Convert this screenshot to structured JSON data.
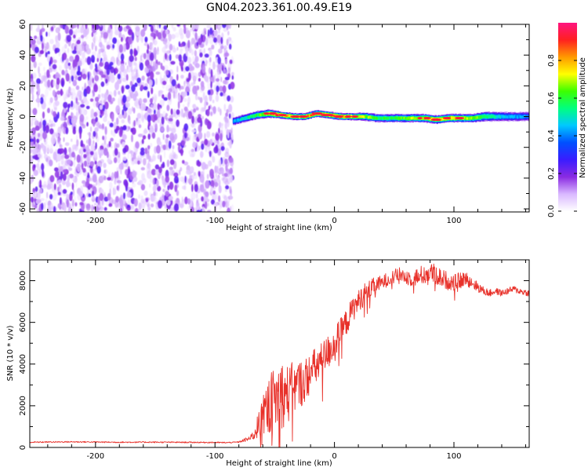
{
  "figure_title": "GN04.2023.361.00.49.E19",
  "chart_data": [
    {
      "type": "heatmap",
      "title": "",
      "xlabel": "Height of straight line (km)",
      "ylabel": "Frequency (Hz)",
      "xlim": [
        -255,
        163
      ],
      "ylim": [
        -62,
        60
      ],
      "xticks": [
        -200,
        -100,
        0,
        100
      ],
      "yticks": [
        -60,
        -40,
        -20,
        0,
        20,
        40,
        60
      ],
      "grid": false,
      "colorbar": {
        "label": "Normalized spectral amplitude",
        "range": [
          0,
          1
        ],
        "ticks": [
          0.0,
          0.2,
          0.4,
          0.6,
          0.8
        ],
        "colormap": [
          "#ffffff",
          "#d9b8ff",
          "#8a2be2",
          "#3a1cff",
          "#0050ff",
          "#00c8ff",
          "#00ff80",
          "#3cff00",
          "#ffff00",
          "#ff9900",
          "#ff2020",
          "#ff1480"
        ]
      },
      "noise_region": {
        "x_range": [
          -255,
          -85
        ],
        "freq_range": [
          -62,
          60
        ],
        "amplitude_range": [
          0.05,
          0.25
        ]
      },
      "signal_track": {
        "x": [
          -85,
          -75,
          -65,
          -55,
          -45,
          -35,
          -25,
          -15,
          -5,
          5,
          15,
          25,
          35,
          45,
          55,
          65,
          75,
          85,
          95,
          105,
          115,
          125,
          135,
          145,
          155,
          163
        ],
        "frequency": [
          -3,
          -1,
          1,
          2,
          1,
          0,
          0,
          2,
          1,
          0,
          0,
          0,
          -1,
          -1,
          -1,
          -1,
          -1,
          -2,
          -1,
          -1,
          -1,
          0,
          0,
          0,
          0,
          0
        ],
        "peak_amplitude": [
          0.5,
          0.6,
          0.7,
          0.9,
          0.95,
          0.95,
          0.95,
          1.0,
          1.0,
          1.0,
          0.9,
          0.8,
          0.7,
          0.7,
          0.75,
          0.8,
          0.85,
          0.9,
          0.9,
          0.85,
          0.8,
          0.7,
          0.6,
          0.5,
          0.5,
          0.45
        ],
        "bandwidth_hz": [
          3,
          3,
          3,
          3,
          2.5,
          2.5,
          2.5,
          2.5,
          2.5,
          2.5,
          2.5,
          3,
          3,
          3,
          3,
          3,
          3,
          3,
          3,
          3,
          3,
          3.5,
          3.5,
          3.5,
          3.5,
          3.5
        ]
      }
    },
    {
      "type": "line",
      "title": "",
      "xlabel": "Height of straight line (km)",
      "ylabel": "SNR (10 * v/v)",
      "xlim": [
        -255,
        163
      ],
      "ylim": [
        0,
        9000
      ],
      "xticks": [
        -200,
        -100,
        0,
        100
      ],
      "yticks": [
        0,
        2000,
        4000,
        6000,
        8000
      ],
      "grid": false,
      "series": [
        {
          "color": "#e8312a",
          "x": [
            -255,
            -240,
            -220,
            -200,
            -180,
            -160,
            -140,
            -120,
            -100,
            -90,
            -80,
            -70,
            -65,
            -60,
            -55,
            -50,
            -45,
            -40,
            -35,
            -30,
            -25,
            -20,
            -15,
            -10,
            -5,
            0,
            5,
            10,
            15,
            20,
            25,
            30,
            35,
            40,
            45,
            50,
            55,
            60,
            65,
            70,
            75,
            80,
            85,
            90,
            95,
            100,
            105,
            110,
            115,
            120,
            125,
            130,
            135,
            140,
            145,
            150,
            155,
            163
          ],
          "y": [
            250,
            260,
            270,
            260,
            250,
            255,
            250,
            245,
            240,
            230,
            260,
            450,
            900,
            1500,
            2000,
            2300,
            2600,
            2500,
            2800,
            3000,
            3200,
            3600,
            3900,
            4200,
            4600,
            5000,
            5500,
            6000,
            6600,
            7000,
            7400,
            7600,
            7800,
            7900,
            8100,
            8200,
            8300,
            8200,
            8100,
            8200,
            8300,
            8400,
            8300,
            8100,
            8000,
            7900,
            8000,
            8100,
            7900,
            7700,
            7500,
            7400,
            7500,
            7400,
            7500,
            7600,
            7500,
            7400
          ],
          "noise_amplitude": [
            30,
            30,
            30,
            30,
            30,
            30,
            30,
            30,
            30,
            30,
            30,
            150,
            500,
            900,
            1400,
            1600,
            1700,
            1500,
            1300,
            1200,
            1100,
            1000,
            950,
            900,
            850,
            800,
            700,
            650,
            600,
            550,
            500,
            450,
            400,
            350,
            350,
            350,
            350,
            400,
            400,
            450,
            500,
            500,
            500,
            450,
            450,
            400,
            400,
            350,
            300,
            250,
            200,
            180,
            170,
            160,
            160,
            160,
            160,
            160
          ]
        }
      ]
    }
  ]
}
